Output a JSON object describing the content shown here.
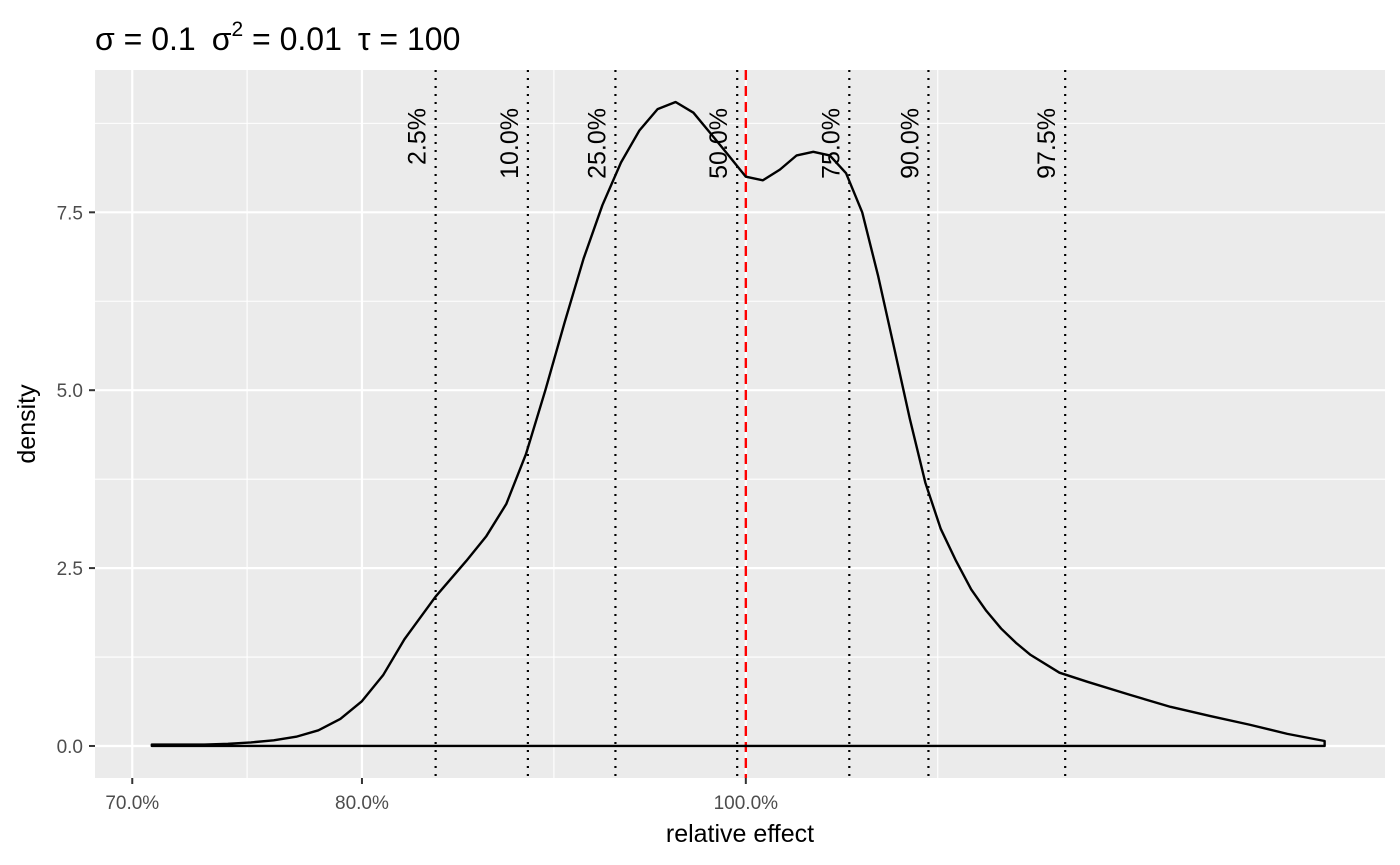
{
  "chart_data": {
    "type": "line",
    "title": "σ = 0.1  σ² = 0.01  τ = 100",
    "title_parts": {
      "sigma": "σ = 0.1",
      "sigma2_base": "σ",
      "sigma2_exp": "2",
      "sigma2_rest": " = 0.01",
      "tau": "τ = 100"
    },
    "xlabel": "relative effect",
    "ylabel": "density",
    "x_scale": "log",
    "xlim": [
      0.685,
      1.45
    ],
    "ylim": [
      -0.45,
      9.5
    ],
    "grid": true,
    "x_ticks": [
      {
        "value": 0.7,
        "label": "70.0%"
      },
      {
        "value": 0.8,
        "label": "80.0%"
      },
      {
        "value": 1.0,
        "label": "100.0%"
      }
    ],
    "y_ticks": [
      {
        "value": 0.0,
        "label": "0.0"
      },
      {
        "value": 2.5,
        "label": "2.5"
      },
      {
        "value": 5.0,
        "label": "5.0"
      },
      {
        "value": 7.5,
        "label": "7.5"
      }
    ],
    "reference_line": {
      "x": 1.0,
      "color": "#ff0000",
      "style": "dashed"
    },
    "quantiles": [
      {
        "label": "2.5%",
        "x": 0.835
      },
      {
        "label": "10.0%",
        "x": 0.881
      },
      {
        "label": "25.0%",
        "x": 0.927
      },
      {
        "label": "50.0%",
        "x": 0.995
      },
      {
        "label": "75.0%",
        "x": 1.062
      },
      {
        "label": "90.0%",
        "x": 1.112
      },
      {
        "label": "97.5%",
        "x": 1.204
      }
    ],
    "series": [
      {
        "color": "#000000",
        "x": [
          0.708,
          0.72,
          0.73,
          0.74,
          0.75,
          0.76,
          0.77,
          0.78,
          0.79,
          0.8,
          0.81,
          0.82,
          0.835,
          0.85,
          0.86,
          0.87,
          0.88,
          0.89,
          0.9,
          0.91,
          0.92,
          0.93,
          0.94,
          0.95,
          0.96,
          0.97,
          0.98,
          0.99,
          1.0,
          1.01,
          1.02,
          1.03,
          1.04,
          1.05,
          1.06,
          1.07,
          1.08,
          1.09,
          1.1,
          1.11,
          1.12,
          1.13,
          1.14,
          1.15,
          1.16,
          1.17,
          1.18,
          1.2,
          1.22,
          1.25,
          1.28,
          1.31,
          1.34,
          1.37,
          1.4
        ],
        "y": [
          0.02,
          0.02,
          0.02,
          0.03,
          0.05,
          0.08,
          0.13,
          0.22,
          0.38,
          0.63,
          1.0,
          1.5,
          2.1,
          2.6,
          2.95,
          3.4,
          4.1,
          5.0,
          5.95,
          6.85,
          7.6,
          8.2,
          8.65,
          8.95,
          9.05,
          8.9,
          8.6,
          8.3,
          8.0,
          7.95,
          8.1,
          8.3,
          8.35,
          8.3,
          8.05,
          7.5,
          6.6,
          5.6,
          4.6,
          3.7,
          3.05,
          2.6,
          2.2,
          1.9,
          1.65,
          1.45,
          1.28,
          1.03,
          0.9,
          0.72,
          0.55,
          0.42,
          0.3,
          0.17,
          0.07
        ]
      }
    ]
  }
}
